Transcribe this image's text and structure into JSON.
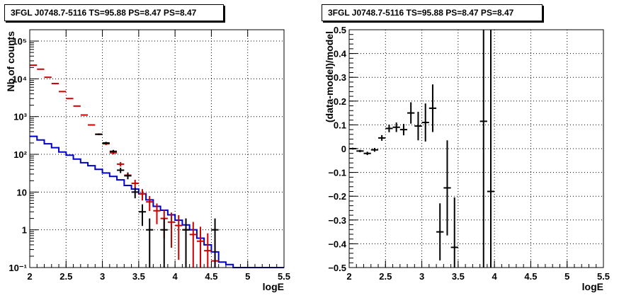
{
  "chart_data": [
    {
      "type": "line",
      "title": "3FGL J0748.7-5116 TS=95.88 PS=8.47 PS=8.47",
      "xlabel": "logE",
      "ylabel": "Nb of counts",
      "xlim": [
        2,
        5.5
      ],
      "ylim": [
        0.1,
        200000
      ],
      "yscale": "log",
      "grid": true,
      "x_tick_labels": [
        "2",
        "2.5",
        "3",
        "3.5",
        "4",
        "4.5",
        "5",
        "5.5"
      ],
      "y_tick_labels": [
        "10⁻¹",
        "1",
        "10",
        "10²",
        "10³",
        "10⁴",
        "10⁵"
      ],
      "x_bin_edges": [
        2,
        2.1,
        2.2,
        2.3,
        2.4,
        2.5,
        2.6,
        2.7,
        2.8,
        2.9,
        3,
        3.1,
        3.2,
        3.3,
        3.4,
        3.5,
        3.6,
        3.7,
        3.8,
        3.9,
        4,
        4.1,
        4.2,
        4.3,
        4.4,
        4.5,
        4.6,
        4.7,
        4.8,
        4.9,
        5,
        5.1,
        5.2,
        5.3,
        5.4,
        5.5
      ],
      "series": [
        {
          "color": "#0000cc",
          "style": "histogram-step",
          "values": [
            300,
            240,
            190,
            150,
            115,
            95,
            75,
            60,
            50,
            40,
            32,
            26,
            21,
            15,
            12,
            9,
            6.2,
            4.2,
            3.3,
            2.5,
            1.8,
            1.35,
            1.0,
            0.6,
            0.4,
            0.26,
            0.14,
            0.12,
            0.1,
            0.1,
            0.1,
            0.1,
            0.1,
            0.1,
            0.1
          ]
        },
        {
          "color": "#cc0000",
          "style": "points-errorbars",
          "values": [
            23000,
            18000,
            11000,
            7500,
            4600,
            3000,
            1900,
            1100,
            600,
            340,
            190,
            110,
            55,
            28,
            17,
            9,
            5.5,
            3.2,
            2.0,
            1.6,
            1.3,
            1.0,
            0.75,
            0.5,
            0.28,
            0.15
          ]
        },
        {
          "color": "#000000",
          "style": "points-errorbars",
          "x": [
            2.95,
            3.05,
            3.15,
            3.25,
            3.35,
            3.45,
            3.55,
            3.65,
            3.85,
            4.15,
            4.55
          ],
          "values": [
            340,
            200,
            120,
            38,
            27,
            10,
            3,
            1,
            1,
            1,
            1
          ]
        }
      ]
    },
    {
      "type": "scatter",
      "title": "3FGL J0748.7-5116 TS=95.88 PS=8.47 PS=8.47",
      "xlabel": "logE",
      "ylabel": "(data-model)/model",
      "xlim": [
        2,
        5.5
      ],
      "ylim": [
        -0.5,
        0.5
      ],
      "grid": true,
      "x_tick_labels": [
        "2",
        "2.5",
        "3",
        "3.5",
        "4",
        "4.5",
        "5",
        "5.5"
      ],
      "y_tick_labels": [
        "−0.5",
        "−0.4",
        "−0.3",
        "−0.2",
        "−0.1",
        "0",
        "0.1",
        "0.2",
        "0.3",
        "0.4",
        "0.5"
      ],
      "series": [
        {
          "color": "#000000",
          "x": [
            2.05,
            2.15,
            2.25,
            2.35,
            2.45,
            2.55,
            2.65,
            2.75,
            2.85,
            2.95,
            3.05,
            3.15,
            3.25,
            3.35,
            3.45,
            3.85,
            3.95
          ],
          "values": [
            0.0,
            -0.01,
            -0.02,
            -0.005,
            0.045,
            0.085,
            0.09,
            0.08,
            0.15,
            0.095,
            0.11,
            0.17,
            -0.35,
            -0.165,
            -0.415,
            0.115,
            -0.18
          ],
          "errors": [
            0.004,
            0.005,
            0.007,
            0.008,
            0.012,
            0.016,
            0.02,
            0.024,
            0.045,
            0.06,
            0.08,
            0.1,
            0.12,
            0.2,
            0.21,
            0.9,
            0.9
          ]
        }
      ]
    }
  ]
}
